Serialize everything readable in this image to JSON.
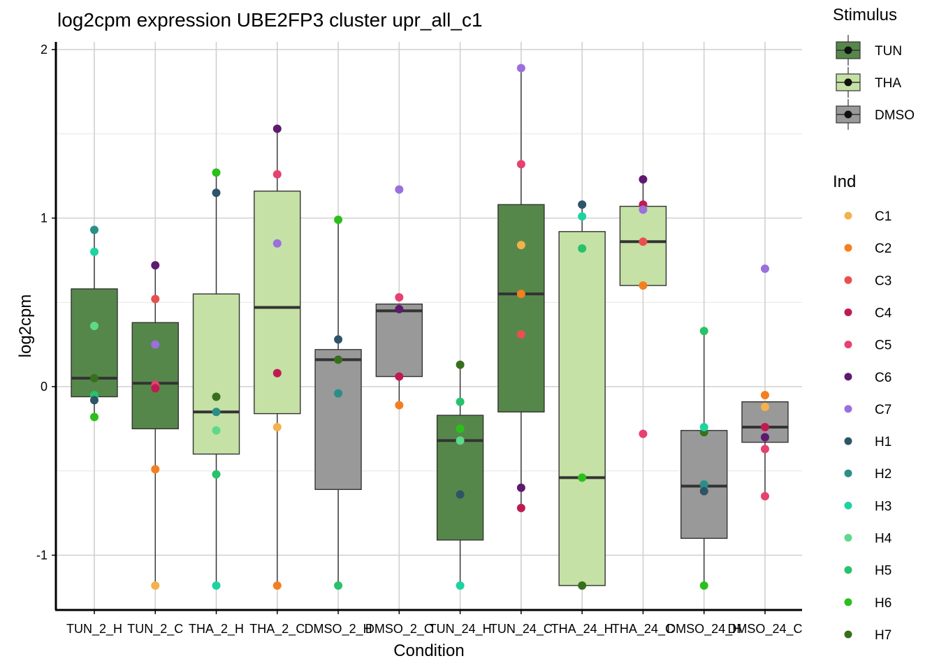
{
  "chart_data": {
    "type": "boxplot",
    "title": "log2cpm expression UBE2FP3 cluster upr_all_c1",
    "xlabel": "Condition",
    "ylabel": "log2cpm",
    "ylim": [
      -1.3,
      2.05
    ],
    "yticks": [
      -1,
      0,
      1,
      2
    ],
    "yticklabels": [
      "-1",
      "0",
      "1",
      "2"
    ],
    "grid": true,
    "categories": [
      "TUN_2_H",
      "TUN_2_C",
      "THA_2_H",
      "THA_2_C",
      "DMSO_2_H",
      "DMSO_2_C",
      "TUN_24_H",
      "TUN_24_C",
      "THA_24_H",
      "THA_24_C",
      "DMSO_24_H",
      "DMSO_24_C"
    ],
    "stimulus_colors": {
      "TUN": "#56874a",
      "THA": "#c5e1a5",
      "DMSO": "#999999"
    },
    "boxes": [
      {
        "condition": "TUN_2_H",
        "stimulus": "TUN",
        "whisker_low": -0.18,
        "q1": -0.06,
        "median": 0.05,
        "q3": 0.58,
        "whisker_high": 0.93
      },
      {
        "condition": "TUN_2_C",
        "stimulus": "TUN",
        "whisker_low": -1.18,
        "q1": -0.25,
        "median": 0.02,
        "q3": 0.38,
        "whisker_high": 0.72
      },
      {
        "condition": "THA_2_H",
        "stimulus": "THA",
        "whisker_low": -1.18,
        "q1": -0.4,
        "median": -0.15,
        "q3": 0.55,
        "whisker_high": 1.27
      },
      {
        "condition": "THA_2_C",
        "stimulus": "THA",
        "whisker_low": -1.18,
        "q1": -0.16,
        "median": 0.47,
        "q3": 1.16,
        "whisker_high": 1.53
      },
      {
        "condition": "DMSO_2_H",
        "stimulus": "DMSO",
        "whisker_low": -1.18,
        "q1": -0.61,
        "median": 0.16,
        "q3": 0.22,
        "whisker_high": 0.99
      },
      {
        "condition": "DMSO_2_C",
        "stimulus": "DMSO",
        "whisker_low": -0.11,
        "q1": 0.06,
        "median": 0.45,
        "q3": 0.49,
        "whisker_high": 0.49
      },
      {
        "condition": "TUN_24_H",
        "stimulus": "TUN",
        "whisker_low": -1.18,
        "q1": -0.91,
        "median": -0.32,
        "q3": -0.17,
        "whisker_high": 0.13
      },
      {
        "condition": "TUN_24_C",
        "stimulus": "TUN",
        "whisker_low": -0.72,
        "q1": -0.15,
        "median": 0.55,
        "q3": 1.08,
        "whisker_high": 1.89
      },
      {
        "condition": "THA_24_H",
        "stimulus": "THA",
        "whisker_low": -1.18,
        "q1": -1.18,
        "median": -0.54,
        "q3": 0.92,
        "whisker_high": 1.08
      },
      {
        "condition": "THA_24_C",
        "stimulus": "THA",
        "whisker_low": 0.6,
        "q1": 0.6,
        "median": 0.86,
        "q3": 1.07,
        "whisker_high": 1.23
      },
      {
        "condition": "DMSO_24_H",
        "stimulus": "DMSO",
        "whisker_low": -1.18,
        "q1": -0.9,
        "median": -0.59,
        "q3": -0.26,
        "whisker_high": 0.33
      },
      {
        "condition": "DMSO_24_C",
        "stimulus": "DMSO",
        "whisker_low": -0.65,
        "q1": -0.33,
        "median": -0.24,
        "q3": -0.09,
        "whisker_high": -0.09
      }
    ],
    "ind_colors": {
      "C1": "#f5b14c",
      "C2": "#f47f20",
      "C3": "#e8504e",
      "C4": "#c01a54",
      "C5": "#e84070",
      "C6": "#5e1a6e",
      "C7": "#9b6fdd",
      "H1": "#2e5468",
      "H2": "#2a8f86",
      "H3": "#1ed3a2",
      "H4": "#5ed98b",
      "H5": "#27c26a",
      "H6": "#2bbf1b",
      "H7": "#386f1e"
    },
    "points": [
      {
        "condition": "TUN_2_H",
        "ind": "H2",
        "value": 0.93
      },
      {
        "condition": "TUN_2_H",
        "ind": "H3",
        "value": 0.8
      },
      {
        "condition": "TUN_2_H",
        "ind": "H4",
        "value": 0.36
      },
      {
        "condition": "TUN_2_H",
        "ind": "H7",
        "value": 0.05
      },
      {
        "condition": "TUN_2_H",
        "ind": "H5",
        "value": -0.05
      },
      {
        "condition": "TUN_2_H",
        "ind": "H1",
        "value": -0.08
      },
      {
        "condition": "TUN_2_H",
        "ind": "H6",
        "value": -0.18
      },
      {
        "condition": "TUN_2_C",
        "ind": "C6",
        "value": 0.72
      },
      {
        "condition": "TUN_2_C",
        "ind": "C3",
        "value": 0.52
      },
      {
        "condition": "TUN_2_C",
        "ind": "C7",
        "value": 0.25
      },
      {
        "condition": "TUN_2_C",
        "ind": "C5",
        "value": 0.01
      },
      {
        "condition": "TUN_2_C",
        "ind": "C4",
        "value": -0.01
      },
      {
        "condition": "TUN_2_C",
        "ind": "C2",
        "value": -0.49
      },
      {
        "condition": "TUN_2_C",
        "ind": "C1",
        "value": -1.18
      },
      {
        "condition": "THA_2_H",
        "ind": "H6",
        "value": 1.27
      },
      {
        "condition": "THA_2_H",
        "ind": "H1",
        "value": 1.15
      },
      {
        "condition": "THA_2_H",
        "ind": "H7",
        "value": -0.06
      },
      {
        "condition": "THA_2_H",
        "ind": "H2",
        "value": -0.15
      },
      {
        "condition": "THA_2_H",
        "ind": "H4",
        "value": -0.26
      },
      {
        "condition": "THA_2_H",
        "ind": "H5",
        "value": -0.52
      },
      {
        "condition": "THA_2_H",
        "ind": "H3",
        "value": -1.18
      },
      {
        "condition": "THA_2_C",
        "ind": "C6",
        "value": 1.53
      },
      {
        "condition": "THA_2_C",
        "ind": "C5",
        "value": 1.26
      },
      {
        "condition": "THA_2_C",
        "ind": "C7",
        "value": 0.85
      },
      {
        "condition": "THA_2_C",
        "ind": "C4",
        "value": 0.08
      },
      {
        "condition": "THA_2_C",
        "ind": "C1",
        "value": -0.24
      },
      {
        "condition": "THA_2_C",
        "ind": "C2",
        "value": -1.18
      },
      {
        "condition": "DMSO_2_H",
        "ind": "H6",
        "value": 0.99
      },
      {
        "condition": "DMSO_2_H",
        "ind": "H1",
        "value": 0.28
      },
      {
        "condition": "DMSO_2_H",
        "ind": "H7",
        "value": 0.16
      },
      {
        "condition": "DMSO_2_H",
        "ind": "H2",
        "value": -0.04
      },
      {
        "condition": "DMSO_2_H",
        "ind": "H5",
        "value": -1.18
      },
      {
        "condition": "DMSO_2_C",
        "ind": "C7",
        "value": 1.17
      },
      {
        "condition": "DMSO_2_C",
        "ind": "C5",
        "value": 0.53
      },
      {
        "condition": "DMSO_2_C",
        "ind": "C6",
        "value": 0.46
      },
      {
        "condition": "DMSO_2_C",
        "ind": "C4",
        "value": 0.06
      },
      {
        "condition": "DMSO_2_C",
        "ind": "C2",
        "value": -0.11
      },
      {
        "condition": "TUN_24_H",
        "ind": "H7",
        "value": 0.13
      },
      {
        "condition": "TUN_24_H",
        "ind": "H5",
        "value": -0.09
      },
      {
        "condition": "TUN_24_H",
        "ind": "H6",
        "value": -0.25
      },
      {
        "condition": "TUN_24_H",
        "ind": "H4",
        "value": -0.32
      },
      {
        "condition": "TUN_24_H",
        "ind": "H1",
        "value": -0.64
      },
      {
        "condition": "TUN_24_H",
        "ind": "H3",
        "value": -1.18
      },
      {
        "condition": "TUN_24_C",
        "ind": "C7",
        "value": 1.89
      },
      {
        "condition": "TUN_24_C",
        "ind": "C5",
        "value": 1.32
      },
      {
        "condition": "TUN_24_C",
        "ind": "C1",
        "value": 0.84
      },
      {
        "condition": "TUN_24_C",
        "ind": "C2",
        "value": 0.55
      },
      {
        "condition": "TUN_24_C",
        "ind": "C3",
        "value": 0.31
      },
      {
        "condition": "TUN_24_C",
        "ind": "C6",
        "value": -0.6
      },
      {
        "condition": "TUN_24_C",
        "ind": "C4",
        "value": -0.72
      },
      {
        "condition": "THA_24_H",
        "ind": "H1",
        "value": 1.08
      },
      {
        "condition": "THA_24_H",
        "ind": "H3",
        "value": 1.01
      },
      {
        "condition": "THA_24_H",
        "ind": "H5",
        "value": 0.82
      },
      {
        "condition": "THA_24_H",
        "ind": "H6",
        "value": -0.54
      },
      {
        "condition": "THA_24_H",
        "ind": "H7",
        "value": -1.18
      },
      {
        "condition": "THA_24_C",
        "ind": "C6",
        "value": 1.23
      },
      {
        "condition": "THA_24_C",
        "ind": "C4",
        "value": 1.08
      },
      {
        "condition": "THA_24_C",
        "ind": "C7",
        "value": 1.05
      },
      {
        "condition": "THA_24_C",
        "ind": "C3",
        "value": 0.86
      },
      {
        "condition": "THA_24_C",
        "ind": "C2",
        "value": 0.6
      },
      {
        "condition": "THA_24_C",
        "ind": "C5",
        "value": -0.28
      },
      {
        "condition": "DMSO_24_H",
        "ind": "H5",
        "value": 0.33
      },
      {
        "condition": "DMSO_24_H",
        "ind": "H7",
        "value": -0.27
      },
      {
        "condition": "DMSO_24_H",
        "ind": "H3",
        "value": -0.24
      },
      {
        "condition": "DMSO_24_H",
        "ind": "H2",
        "value": -0.58
      },
      {
        "condition": "DMSO_24_H",
        "ind": "H1",
        "value": -0.62
      },
      {
        "condition": "DMSO_24_H",
        "ind": "H6",
        "value": -1.18
      },
      {
        "condition": "DMSO_24_C",
        "ind": "C7",
        "value": 0.7
      },
      {
        "condition": "DMSO_24_C",
        "ind": "C2",
        "value": -0.05
      },
      {
        "condition": "DMSO_24_C",
        "ind": "C1",
        "value": -0.12
      },
      {
        "condition": "DMSO_24_C",
        "ind": "C4",
        "value": -0.24
      },
      {
        "condition": "DMSO_24_C",
        "ind": "C6",
        "value": -0.3
      },
      {
        "condition": "DMSO_24_C",
        "ind": "C5",
        "value": -0.37
      },
      {
        "condition": "DMSO_24_C",
        "ind": "C5",
        "value": -0.65
      }
    ],
    "legend": {
      "stimulus_title": "Stimulus",
      "stimulus_entries": [
        "TUN",
        "THA",
        "DMSO"
      ],
      "ind_title": "Ind",
      "ind_entries": [
        "C1",
        "C2",
        "C3",
        "C4",
        "C5",
        "C6",
        "C7",
        "H1",
        "H2",
        "H3",
        "H4",
        "H5",
        "H6",
        "H7"
      ],
      "position": "right"
    }
  }
}
